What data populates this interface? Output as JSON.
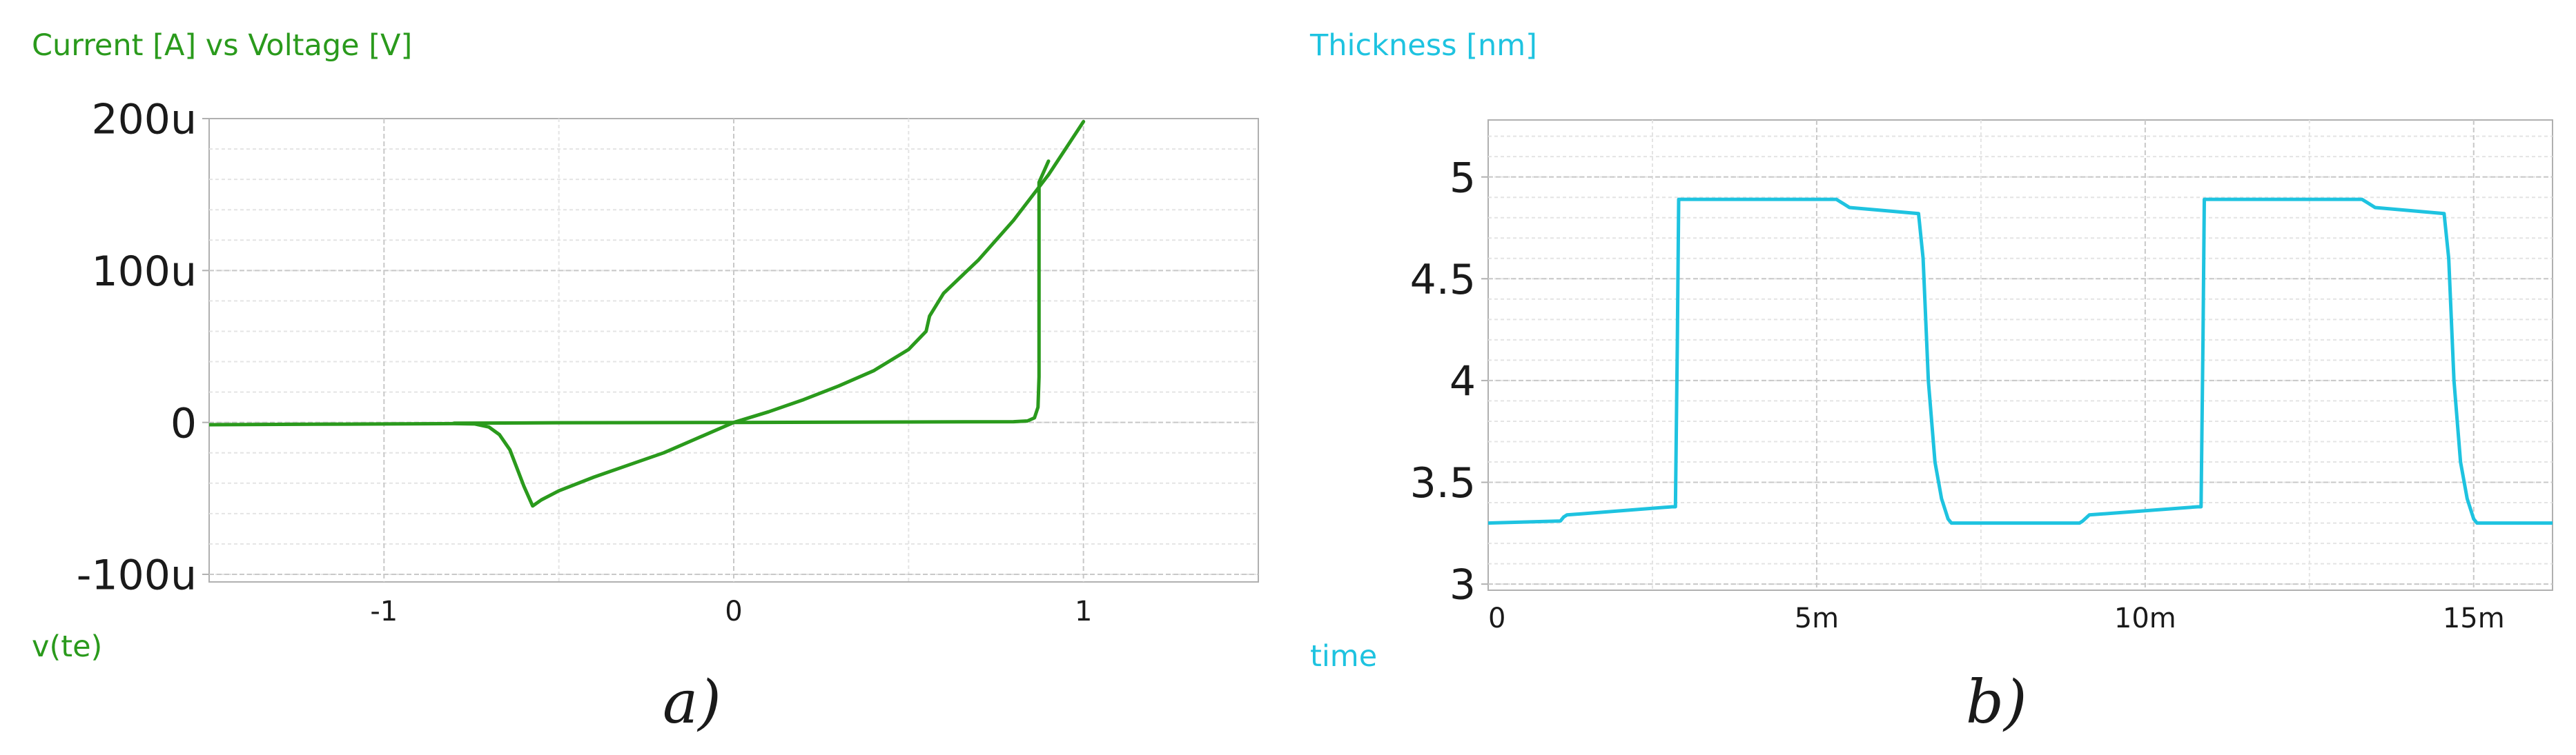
{
  "colors": {
    "iv_curve": "#2a9a1c",
    "thickness": "#1ec3e0",
    "text": "#1a1a1a",
    "grid_major": "#c8c8c8",
    "grid_minor": "#e4e4e4",
    "axis": "#b0b0b0"
  },
  "chart_data": [
    {
      "type": "line",
      "title": "Current [A] vs Voltage [V]",
      "xlabel": "v(te)",
      "ylabel": "Current [A]",
      "caption": "a)",
      "xlim": [
        -1.5,
        1.5
      ],
      "ylim": [
        -105,
        200
      ],
      "y_unit": "µA",
      "grid": true,
      "x_ticks": [
        -1,
        0,
        1
      ],
      "x_tick_labels": [
        "-1",
        "0",
        "1"
      ],
      "y_ticks": [
        -100,
        0,
        100,
        200
      ],
      "y_tick_labels": [
        "-100u",
        "0",
        "100u",
        "200u"
      ],
      "series": [
        {
          "x": [
            -1.5,
            -1.2,
            -1.0,
            -0.8,
            -0.74,
            -0.7,
            -0.67,
            -0.64,
            -0.62,
            -0.6,
            -0.575,
            -0.55,
            -0.5,
            -0.4,
            -0.3,
            -0.2,
            -0.1,
            0.0,
            0.1,
            0.2,
            0.3,
            0.4,
            0.5,
            0.55,
            0.56,
            0.6,
            0.7,
            0.8,
            0.9,
            1.0
          ],
          "y": [
            -1.5,
            -1.2,
            -1.0,
            -0.8,
            -1.0,
            -3,
            -8,
            -18,
            -30,
            -42,
            -55,
            -51,
            -45,
            -36,
            -28,
            -20,
            -10,
            0,
            7,
            15,
            24,
            34,
            48,
            60,
            70,
            85,
            107,
            133,
            163,
            198
          ]
        },
        {
          "x": [
            -0.8,
            -0.5,
            0.0,
            0.5,
            0.8,
            0.84,
            0.86,
            0.87,
            0.873,
            0.873,
            0.873,
            0.9
          ],
          "y": [
            -0.5,
            -0.2,
            0,
            0.3,
            0.5,
            1,
            3,
            10,
            30,
            100,
            158,
            172
          ]
        }
      ]
    },
    {
      "type": "line",
      "title": "Thickness [nm]",
      "xlabel": "time",
      "ylabel": "Thickness [nm]",
      "caption": "b)",
      "xlim": [
        0,
        16.2
      ],
      "x_unit": "ms",
      "ylim": [
        2.97,
        5.28
      ],
      "grid": true,
      "x_ticks": [
        0,
        5,
        10,
        15
      ],
      "x_tick_labels": [
        "0",
        "5m",
        "10m",
        "15m"
      ],
      "y_ticks": [
        3,
        3.5,
        4,
        4.5,
        5
      ],
      "y_tick_labels": [
        "3",
        "3.5",
        "4",
        "4.5",
        "5"
      ],
      "series": [
        {
          "x": [
            0,
            1.1,
            1.15,
            1.2,
            2.8,
            2.85,
            2.88,
            2.9,
            5.3,
            5.4,
            5.5,
            6.55,
            6.62,
            6.7,
            6.8,
            6.9,
            7.0,
            7.05,
            9.0,
            9.05,
            9.15,
            10.8,
            10.85,
            10.88,
            10.9,
            13.3,
            13.4,
            13.5,
            14.55,
            14.62,
            14.7,
            14.8,
            14.9,
            15.0,
            15.05,
            16.2
          ],
          "y": [
            3.3,
            3.31,
            3.33,
            3.34,
            3.38,
            3.38,
            4.2,
            4.89,
            4.89,
            4.87,
            4.85,
            4.82,
            4.6,
            4.0,
            3.6,
            3.42,
            3.32,
            3.3,
            3.3,
            3.31,
            3.34,
            3.38,
            3.38,
            4.2,
            4.89,
            4.89,
            4.87,
            4.85,
            4.82,
            4.6,
            4.0,
            3.6,
            3.42,
            3.32,
            3.3,
            3.3
          ]
        }
      ]
    }
  ]
}
